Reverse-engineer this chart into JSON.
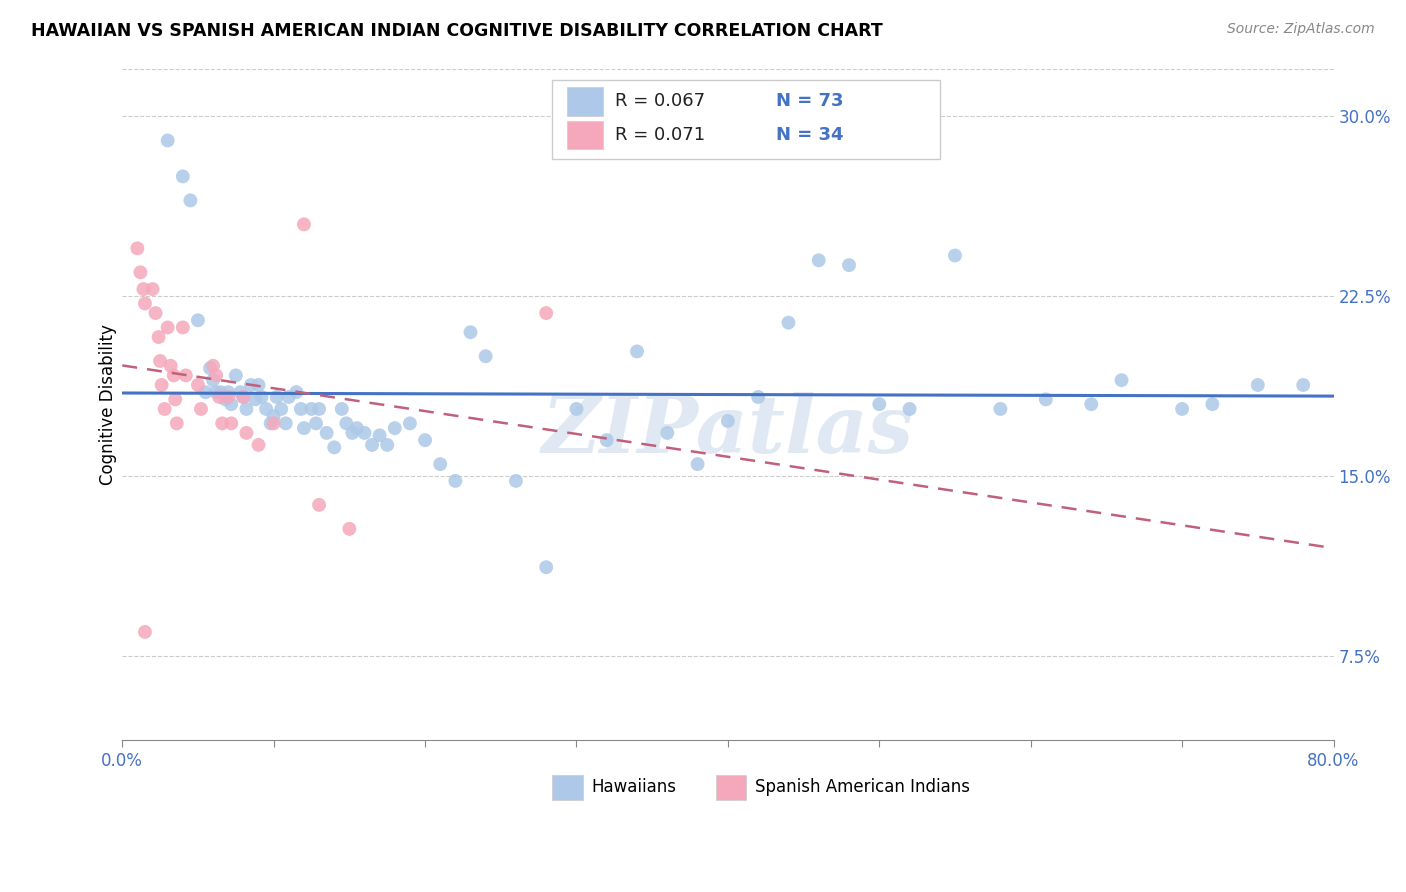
{
  "title": "HAWAIIAN VS SPANISH AMERICAN INDIAN COGNITIVE DISABILITY CORRELATION CHART",
  "source": "Source: ZipAtlas.com",
  "ylabel": "Cognitive Disability",
  "xlim": [
    0.0,
    0.8
  ],
  "ylim": [
    0.04,
    0.32
  ],
  "yticks": [
    0.075,
    0.15,
    0.225,
    0.3
  ],
  "ytick_labels": [
    "7.5%",
    "15.0%",
    "22.5%",
    "30.0%"
  ],
  "hawaiian_color": "#adc8e8",
  "spanish_color": "#f5a8bb",
  "trendline_hawaiian_color": "#4472c4",
  "trendline_spanish_color": "#c0607a",
  "watermark": "ZIPatlas",
  "hawaiian_x": [
    0.03,
    0.04,
    0.045,
    0.05,
    0.055,
    0.058,
    0.06,
    0.062,
    0.065,
    0.068,
    0.07,
    0.072,
    0.075,
    0.078,
    0.08,
    0.082,
    0.085,
    0.088,
    0.09,
    0.092,
    0.095,
    0.098,
    0.1,
    0.102,
    0.105,
    0.108,
    0.11,
    0.115,
    0.118,
    0.12,
    0.125,
    0.128,
    0.13,
    0.135,
    0.14,
    0.145,
    0.148,
    0.152,
    0.155,
    0.16,
    0.165,
    0.17,
    0.175,
    0.18,
    0.19,
    0.2,
    0.21,
    0.22,
    0.23,
    0.24,
    0.26,
    0.28,
    0.3,
    0.32,
    0.34,
    0.36,
    0.38,
    0.4,
    0.42,
    0.44,
    0.46,
    0.48,
    0.5,
    0.52,
    0.55,
    0.58,
    0.61,
    0.64,
    0.66,
    0.7,
    0.72,
    0.75,
    0.78
  ],
  "hawaiian_y": [
    0.29,
    0.275,
    0.265,
    0.215,
    0.185,
    0.195,
    0.19,
    0.185,
    0.185,
    0.182,
    0.185,
    0.18,
    0.192,
    0.185,
    0.183,
    0.178,
    0.188,
    0.182,
    0.188,
    0.183,
    0.178,
    0.172,
    0.175,
    0.183,
    0.178,
    0.172,
    0.183,
    0.185,
    0.178,
    0.17,
    0.178,
    0.172,
    0.178,
    0.168,
    0.162,
    0.178,
    0.172,
    0.168,
    0.17,
    0.168,
    0.163,
    0.167,
    0.163,
    0.17,
    0.172,
    0.165,
    0.155,
    0.148,
    0.21,
    0.2,
    0.148,
    0.112,
    0.178,
    0.165,
    0.202,
    0.168,
    0.155,
    0.173,
    0.183,
    0.214,
    0.24,
    0.238,
    0.18,
    0.178,
    0.242,
    0.178,
    0.182,
    0.18,
    0.19,
    0.178,
    0.18,
    0.188,
    0.188
  ],
  "spanish_x": [
    0.01,
    0.012,
    0.014,
    0.015,
    0.015,
    0.02,
    0.022,
    0.024,
    0.025,
    0.026,
    0.028,
    0.03,
    0.032,
    0.034,
    0.035,
    0.036,
    0.04,
    0.042,
    0.05,
    0.052,
    0.06,
    0.062,
    0.064,
    0.066,
    0.07,
    0.072,
    0.08,
    0.082,
    0.09,
    0.1,
    0.12,
    0.13,
    0.15,
    0.28
  ],
  "spanish_y": [
    0.245,
    0.235,
    0.228,
    0.222,
    0.085,
    0.228,
    0.218,
    0.208,
    0.198,
    0.188,
    0.178,
    0.212,
    0.196,
    0.192,
    0.182,
    0.172,
    0.212,
    0.192,
    0.188,
    0.178,
    0.196,
    0.192,
    0.183,
    0.172,
    0.183,
    0.172,
    0.183,
    0.168,
    0.163,
    0.172,
    0.255,
    0.138,
    0.128,
    0.218
  ]
}
